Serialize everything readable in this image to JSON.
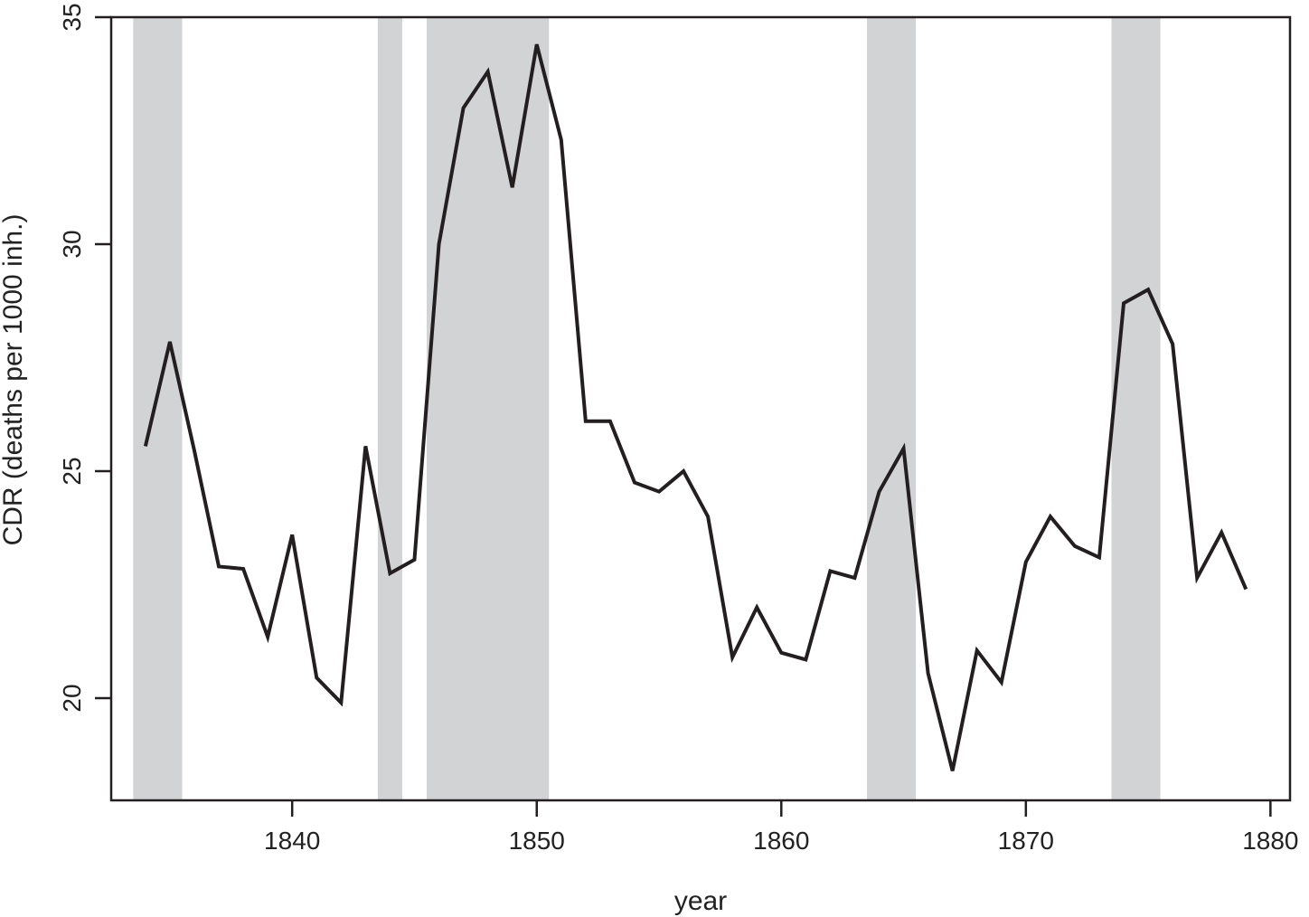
{
  "chart_data": {
    "type": "line",
    "xlabel": "year",
    "ylabel": "CDR (deaths per 1000 inh.)",
    "xlim": [
      1832.6,
      1880.8
    ],
    "ylim": [
      17.75,
      35
    ],
    "xticks": [
      1840,
      1850,
      1860,
      1870,
      1880
    ],
    "yticks": [
      20,
      25,
      30,
      35
    ],
    "grid": false,
    "line_color": "#231f20",
    "shade_color": "#d1d3d4",
    "shaded_periods": [
      [
        1833.5,
        1835.5
      ],
      [
        1843.5,
        1844.5
      ],
      [
        1845.5,
        1850.5
      ],
      [
        1863.5,
        1865.5
      ],
      [
        1873.5,
        1875.5
      ]
    ],
    "series": [
      {
        "x": [
          1834,
          1835,
          1836,
          1837,
          1838,
          1839,
          1840,
          1841,
          1842,
          1843,
          1844,
          1845,
          1846,
          1847,
          1848,
          1849,
          1850,
          1851,
          1852,
          1853,
          1854,
          1855,
          1856,
          1857,
          1858,
          1859,
          1860,
          1861,
          1862,
          1863,
          1864,
          1865,
          1866,
          1867,
          1868,
          1869,
          1870,
          1871,
          1872,
          1873,
          1874,
          1875,
          1876,
          1877,
          1878,
          1879
        ],
        "values": [
          25.55,
          27.85,
          25.45,
          22.9,
          22.85,
          21.35,
          23.6,
          20.45,
          19.9,
          25.55,
          22.75,
          23.05,
          30.0,
          33.0,
          33.8,
          31.25,
          34.4,
          32.3,
          26.1,
          26.1,
          24.75,
          24.55,
          25.0,
          24.0,
          20.9,
          22.0,
          21.0,
          20.85,
          22.8,
          22.65,
          24.55,
          25.5,
          20.55,
          18.4,
          21.05,
          20.35,
          23.0,
          24.0,
          23.35,
          23.1,
          28.7,
          29.0,
          27.8,
          22.65,
          23.65,
          22.4
        ]
      }
    ]
  }
}
